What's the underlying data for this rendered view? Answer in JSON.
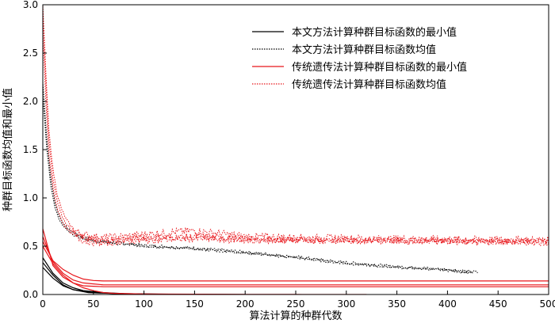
{
  "chart_data": {
    "type": "line",
    "xlabel": "算法计算的种群代数",
    "ylabel": "种群目标函数均值和最小值",
    "xlim": [
      0,
      500
    ],
    "ylim": [
      0,
      3.0
    ],
    "xticks": [
      0,
      50,
      100,
      150,
      200,
      250,
      300,
      350,
      400,
      450,
      500
    ],
    "yticks": [
      0.0,
      0.5,
      1.0,
      1.5,
      2.0,
      2.5,
      3.0
    ],
    "ytick_labels": [
      "0.0",
      "0.5",
      "1.0",
      "1.5",
      "2.0",
      "2.5",
      "3.0"
    ],
    "grid": false,
    "legend_position": "top-right",
    "legend": [
      {
        "label": "本文方法计算种群目标函数的最小值",
        "color": "#000000",
        "style": "solid"
      },
      {
        "label": "本文方法计算种群目标函数均值",
        "color": "#000000",
        "style": "dotted"
      },
      {
        "label": "传统遗传法计算种群目标函数的最小值",
        "color": "#e8161b",
        "style": "solid"
      },
      {
        "label": "传统遗传法计算种群目标函数均值",
        "color": "#e8161b",
        "style": "dotted"
      }
    ],
    "series": [
      {
        "color": "#000000",
        "style": "solid",
        "x": [
          0,
          10,
          20,
          30,
          40,
          60,
          80,
          100,
          130,
          160,
          200
        ],
        "y": [
          0.38,
          0.22,
          0.12,
          0.07,
          0.04,
          0.02,
          0.01,
          0.005,
          0.002,
          0.001,
          0.0
        ]
      },
      {
        "color": "#000000",
        "style": "solid",
        "x": [
          0,
          10,
          20,
          30,
          45,
          70,
          100,
          150
        ],
        "y": [
          0.33,
          0.2,
          0.1,
          0.05,
          0.025,
          0.01,
          0.005,
          0.002
        ]
      },
      {
        "color": "#000000",
        "style": "solid",
        "x": [
          0,
          10,
          20,
          30,
          45,
          70,
          100,
          130
        ],
        "y": [
          0.28,
          0.17,
          0.09,
          0.05,
          0.02,
          0.01,
          0.004,
          0.002
        ]
      },
      {
        "color": "#000000",
        "style": "dotted",
        "noise": 0.015,
        "x": [
          0,
          4,
          8,
          12,
          16,
          20,
          25,
          30,
          40,
          50,
          60,
          80,
          100,
          150,
          200,
          250,
          300,
          350,
          400,
          430
        ],
        "y": [
          2.2,
          1.6,
          1.2,
          0.95,
          0.82,
          0.74,
          0.68,
          0.64,
          0.59,
          0.56,
          0.55,
          0.53,
          0.51,
          0.48,
          0.44,
          0.39,
          0.33,
          0.29,
          0.26,
          0.23
        ]
      },
      {
        "color": "#000000",
        "style": "dotted",
        "noise": 0.012,
        "x": [
          0,
          4,
          8,
          12,
          16,
          20,
          25,
          30,
          40,
          50,
          60,
          80,
          100,
          150,
          200,
          250,
          300,
          350,
          400,
          425
        ],
        "y": [
          2.05,
          1.5,
          1.12,
          0.9,
          0.78,
          0.71,
          0.66,
          0.62,
          0.58,
          0.55,
          0.54,
          0.52,
          0.5,
          0.47,
          0.43,
          0.38,
          0.32,
          0.28,
          0.25,
          0.22
        ]
      },
      {
        "color": "#e8161b",
        "style": "solid",
        "x": [
          0,
          10,
          20,
          30,
          40,
          50,
          60,
          70,
          100,
          150,
          200,
          250,
          300,
          320
        ],
        "y": [
          0.5,
          0.32,
          0.2,
          0.12,
          0.07,
          0.04,
          0.02,
          0.012,
          0.006,
          0.003,
          0.002,
          0.001,
          0.0,
          0.0
        ]
      },
      {
        "color": "#e8161b",
        "style": "solid",
        "x": [
          0,
          10,
          20,
          30,
          40,
          50,
          60,
          80,
          100,
          150,
          200,
          300,
          400,
          500
        ],
        "y": [
          0.55,
          0.35,
          0.26,
          0.2,
          0.16,
          0.145,
          0.14,
          0.14,
          0.14,
          0.14,
          0.14,
          0.14,
          0.14,
          0.14
        ]
      },
      {
        "color": "#e8161b",
        "style": "solid",
        "x": [
          0,
          10,
          20,
          30,
          40,
          50,
          60,
          80,
          100,
          150,
          200,
          300,
          400,
          500
        ],
        "y": [
          0.6,
          0.34,
          0.22,
          0.15,
          0.12,
          0.11,
          0.1,
          0.1,
          0.1,
          0.1,
          0.1,
          0.1,
          0.1,
          0.1
        ]
      },
      {
        "color": "#e8161b",
        "style": "solid",
        "x": [
          0,
          10,
          20,
          30,
          40,
          50,
          60,
          80,
          100,
          150,
          200,
          300,
          400,
          500
        ],
        "y": [
          0.68,
          0.3,
          0.18,
          0.12,
          0.09,
          0.085,
          0.08,
          0.08,
          0.08,
          0.08,
          0.08,
          0.08,
          0.08,
          0.08
        ]
      },
      {
        "color": "#e8161b",
        "style": "dotted",
        "noise": 0.04,
        "x": [
          0,
          3,
          6,
          10,
          14,
          18,
          22,
          27,
          32,
          40,
          50,
          60,
          80,
          100,
          120,
          150,
          200,
          300,
          400,
          500
        ],
        "y": [
          3.0,
          2.3,
          1.7,
          1.3,
          1.05,
          0.9,
          0.8,
          0.72,
          0.66,
          0.62,
          0.6,
          0.59,
          0.6,
          0.62,
          0.64,
          0.66,
          0.6,
          0.58,
          0.57,
          0.56
        ]
      },
      {
        "color": "#e8161b",
        "style": "dotted",
        "noise": 0.035,
        "x": [
          0,
          3,
          6,
          10,
          14,
          18,
          22,
          27,
          32,
          40,
          50,
          60,
          80,
          100,
          120,
          150,
          200,
          300,
          400,
          500
        ],
        "y": [
          2.9,
          2.2,
          1.6,
          1.2,
          0.98,
          0.84,
          0.75,
          0.68,
          0.63,
          0.59,
          0.57,
          0.56,
          0.57,
          0.58,
          0.59,
          0.6,
          0.57,
          0.56,
          0.56,
          0.55
        ]
      },
      {
        "color": "#e8161b",
        "style": "dotted",
        "noise": 0.035,
        "x": [
          0,
          3,
          6,
          10,
          14,
          18,
          22,
          27,
          32,
          40,
          50,
          60,
          80,
          100,
          120,
          150,
          200,
          300,
          400,
          500
        ],
        "y": [
          2.7,
          2.0,
          1.45,
          1.1,
          0.9,
          0.78,
          0.7,
          0.64,
          0.6,
          0.56,
          0.54,
          0.53,
          0.55,
          0.56,
          0.57,
          0.58,
          0.56,
          0.56,
          0.55,
          0.54
        ]
      }
    ]
  }
}
